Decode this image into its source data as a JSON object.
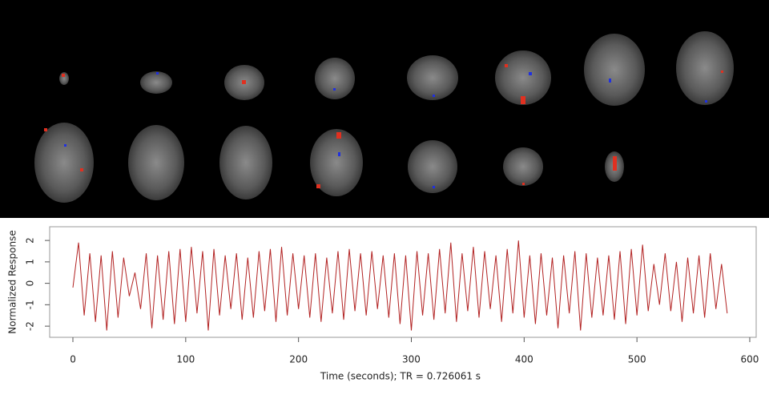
{
  "chart_data": {
    "type": "line",
    "xlabel": "Time (seconds); TR = 0.726061 s",
    "ylabel": "Normalized Response",
    "x": [
      0,
      5,
      10,
      15,
      20,
      25,
      30,
      35,
      40,
      45,
      50,
      55,
      60,
      65,
      70,
      75,
      80,
      85,
      90,
      95,
      100,
      105,
      110,
      115,
      120,
      125,
      130,
      135,
      140,
      145,
      150,
      155,
      160,
      165,
      170,
      175,
      180,
      185,
      190,
      195,
      200,
      205,
      210,
      215,
      220,
      225,
      230,
      235,
      240,
      245,
      250,
      255,
      260,
      265,
      270,
      275,
      280,
      285,
      290,
      295,
      300,
      305,
      310,
      315,
      320,
      325,
      330,
      335,
      340,
      345,
      350,
      355,
      360,
      365,
      370,
      375,
      380,
      385,
      390,
      395,
      400,
      405,
      410,
      415,
      420,
      425,
      430,
      435,
      440,
      445,
      450,
      455,
      460,
      465,
      470,
      475,
      480,
      485,
      490,
      495,
      500,
      505,
      510,
      515,
      520,
      525,
      530,
      535,
      540,
      545,
      550,
      555,
      560,
      565,
      570,
      575,
      580
    ],
    "series": [
      {
        "color": "#b22222",
        "values": [
          -0.2,
          1.9,
          -1.5,
          1.4,
          -1.8,
          1.3,
          -2.2,
          1.5,
          -1.6,
          1.2,
          -0.6,
          0.5,
          -1.2,
          1.4,
          -2.1,
          1.3,
          -1.7,
          1.5,
          -1.9,
          1.6,
          -1.8,
          1.7,
          -1.4,
          1.5,
          -2.2,
          1.6,
          -1.5,
          1.3,
          -1.2,
          1.4,
          -1.7,
          1.2,
          -1.6,
          1.5,
          -1.3,
          1.6,
          -1.8,
          1.7,
          -1.5,
          1.4,
          -1.2,
          1.3,
          -1.6,
          1.4,
          -1.8,
          1.2,
          -1.4,
          1.5,
          -1.7,
          1.6,
          -1.3,
          1.4,
          -1.5,
          1.5,
          -1.2,
          1.3,
          -1.6,
          1.4,
          -1.9,
          1.3,
          -2.2,
          1.5,
          -1.5,
          1.4,
          -1.7,
          1.6,
          -1.4,
          1.9,
          -1.8,
          1.4,
          -1.3,
          1.7,
          -1.6,
          1.5,
          -1.2,
          1.3,
          -1.8,
          1.6,
          -1.4,
          2.0,
          -1.6,
          1.3,
          -1.9,
          1.4,
          -1.5,
          1.2,
          -2.1,
          1.3,
          -1.4,
          1.5,
          -2.2,
          1.4,
          -1.6,
          1.2,
          -1.5,
          1.3,
          -1.7,
          1.5,
          -1.9,
          1.6,
          -1.5,
          1.8,
          -1.3,
          0.9,
          -1.0,
          1.4,
          -1.3,
          1.0,
          -1.8,
          1.2,
          -1.4,
          1.3,
          -1.6,
          1.4,
          -1.2,
          0.9,
          -1.4
        ]
      }
    ],
    "xlim": [
      -20.6,
      605.7
    ],
    "ylim": [
      -2.52,
      2.64
    ],
    "xticks": [
      0,
      100,
      200,
      300,
      400,
      500,
      600
    ],
    "yticks": [
      -2,
      -1,
      0,
      1,
      2
    ]
  }
}
